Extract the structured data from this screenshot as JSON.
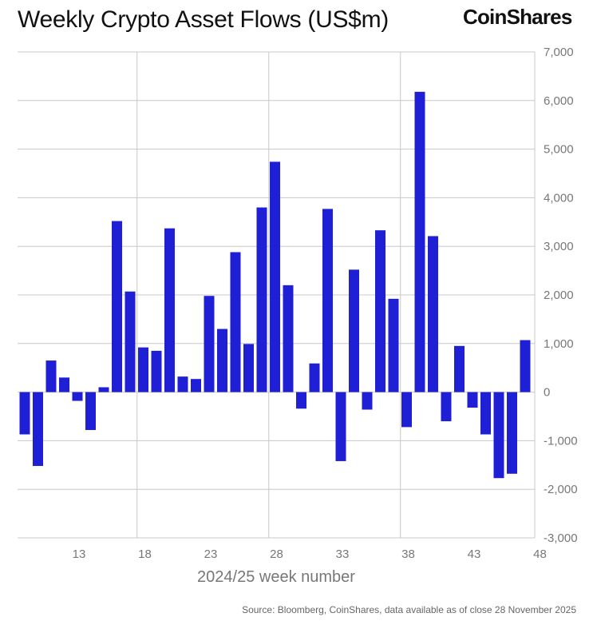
{
  "header": {
    "title": "Weekly Crypto Asset Flows (US$m)",
    "brand": "CoinShares"
  },
  "footer": {
    "source": "Source: Bloomberg, CoinShares, data available as of close 28 November 2025"
  },
  "colors": {
    "bar": "#1f1fd6",
    "grid": "#c8c8c8",
    "tick_text": "#777777"
  },
  "chart_data": {
    "type": "bar",
    "title": "Weekly Crypto Asset Flows (US$m)",
    "xlabel": "2024/25 week number",
    "ylabel": "",
    "ylim": [
      -3000,
      7000
    ],
    "y_ticks": [
      7000,
      6000,
      5000,
      4000,
      3000,
      2000,
      1000,
      0,
      -1000,
      -2000,
      -3000
    ],
    "y_tick_labels": [
      "7,000",
      "6,000",
      "5,000",
      "4,000",
      "3,000",
      "2,000",
      "1,000",
      "0",
      "-1,000",
      "-2,000",
      "-3,000"
    ],
    "x_tick_labels": [
      "13",
      "18",
      "23",
      "28",
      "33",
      "38",
      "43",
      "48"
    ],
    "x_tick_weeks": [
      13,
      18,
      23,
      28,
      33,
      38,
      43,
      48
    ],
    "x_grid_weeks": [
      18,
      28,
      38
    ],
    "weeks": [
      9,
      10,
      11,
      12,
      13,
      14,
      15,
      16,
      17,
      18,
      19,
      20,
      21,
      22,
      23,
      24,
      25,
      26,
      27,
      28,
      29,
      30,
      31,
      32,
      33,
      34,
      35,
      36,
      37,
      38,
      39,
      40,
      41,
      42,
      43,
      44,
      45,
      46,
      47,
      48
    ],
    "values": [
      -870,
      -1520,
      650,
      300,
      -180,
      -780,
      100,
      3520,
      2070,
      920,
      850,
      3370,
      320,
      270,
      1980,
      1300,
      2880,
      990,
      3800,
      4740,
      2200,
      -340,
      590,
      3770,
      -1420,
      2520,
      -360,
      3330,
      1920,
      -720,
      6180,
      3210,
      -600,
      950,
      -320,
      -870,
      -1770,
      -1680,
      1070,
      0
    ],
    "legend": "none",
    "grid": true
  }
}
